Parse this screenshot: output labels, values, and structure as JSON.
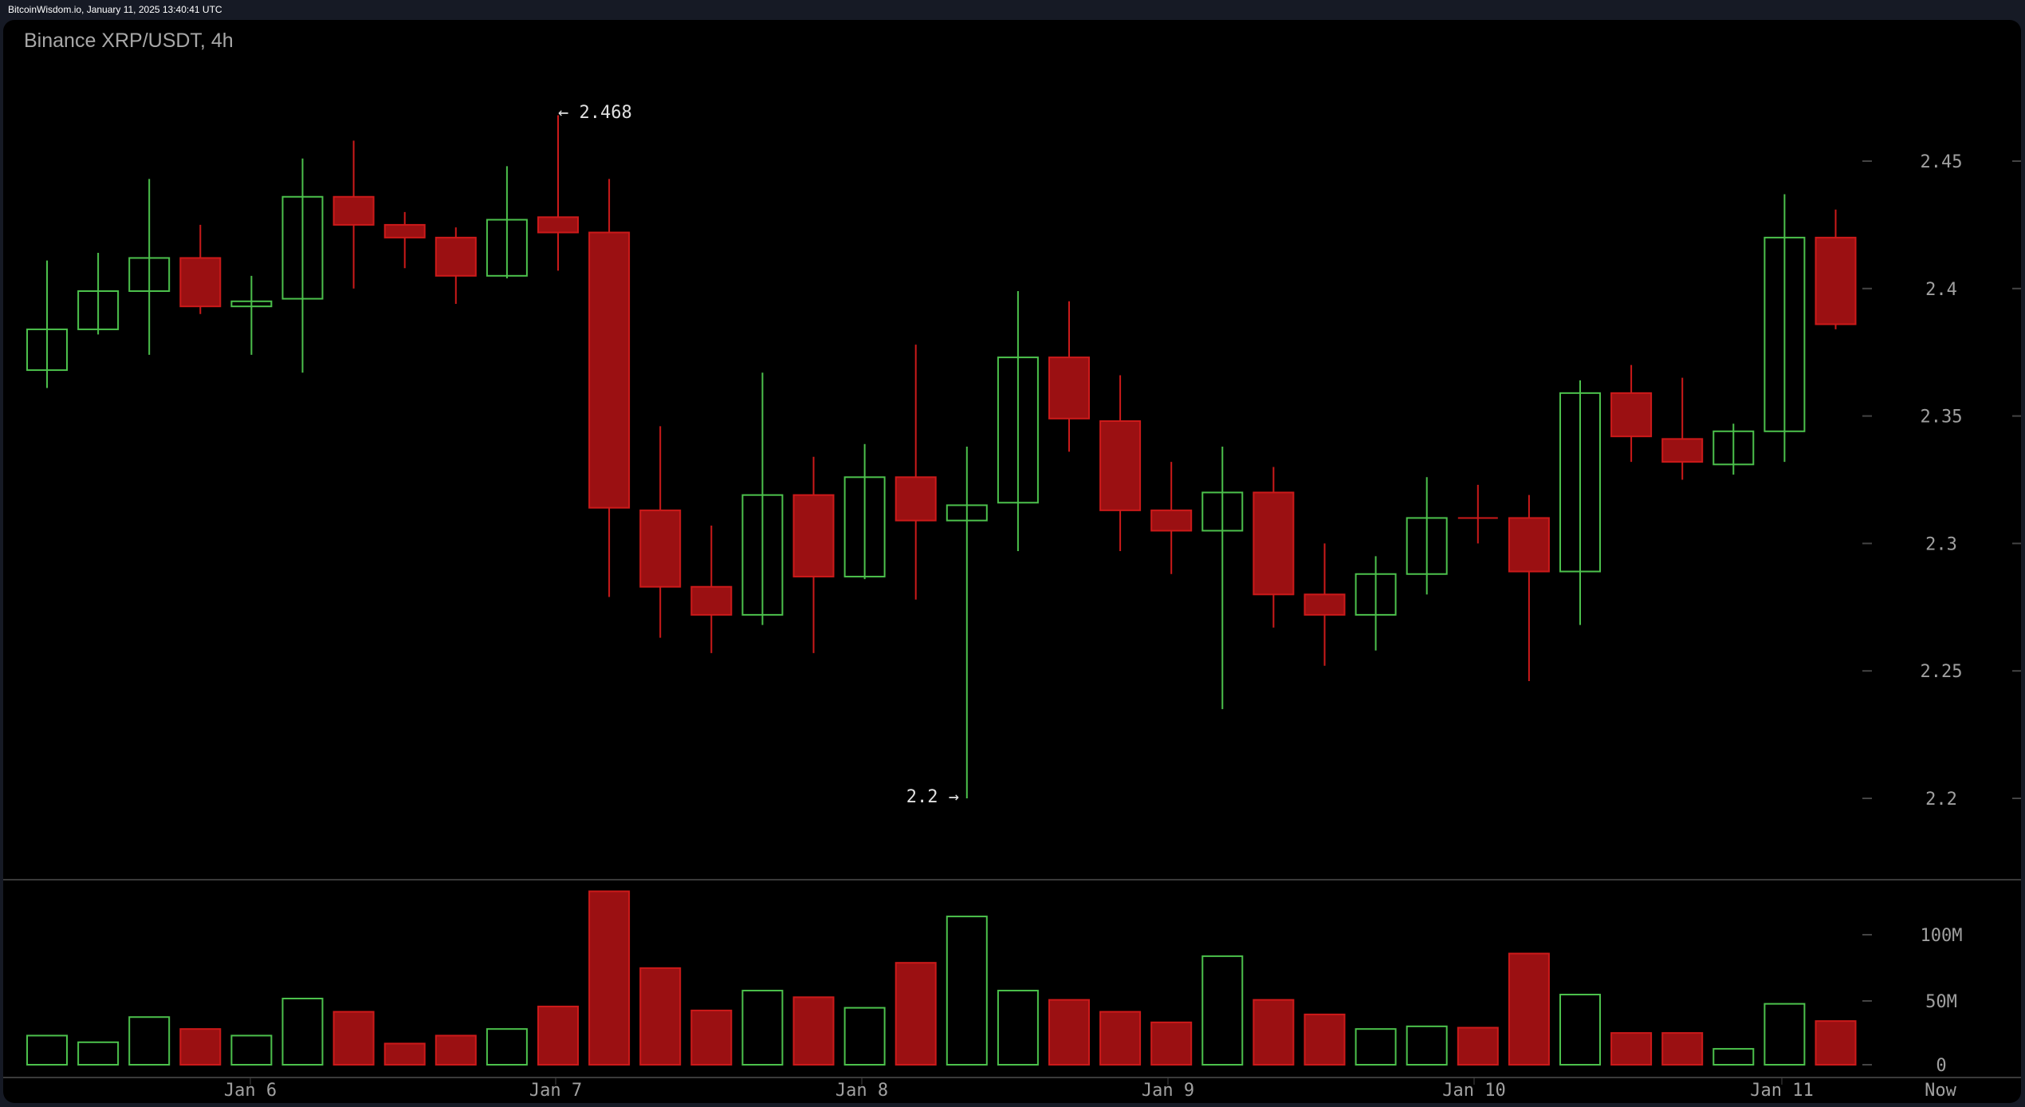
{
  "header": {
    "source_line": "BitcoinWisdom.io, January 11, 2025 13:40:41 UTC",
    "chart_title": "Binance XRP/USDT, 4h"
  },
  "colors": {
    "up": "#4cc14c",
    "down": "#cc1a1a",
    "down_fill": "#9b1012",
    "background": "#000000",
    "frame": "#161a25",
    "axis_text": "#a0a0a0"
  },
  "annotations": {
    "high_label": "← 2.468",
    "low_label": "2.2 →"
  },
  "chart_data": {
    "type": "candlestick",
    "title": "Binance XRP/USDT, 4h",
    "xlabel": "",
    "ylabel": "",
    "ylim": [
      2.165,
      2.48
    ],
    "price_ticks": [
      "2.45",
      "2.4",
      "2.35",
      "2.3",
      "2.25",
      "2.2"
    ],
    "volume_ticks": [
      "100M",
      "50M",
      "0"
    ],
    "x_tick_labels": [
      "Jan 6",
      "Jan 7",
      "Jan 8",
      "Jan 9",
      "Jan 10",
      "Jan 11",
      "Now"
    ],
    "grid": false,
    "high_marker": 2.468,
    "low_marker": 2.2,
    "candles": [
      {
        "o": 2.368,
        "h": 2.411,
        "l": 2.361,
        "c": 2.384,
        "v": 22
      },
      {
        "o": 2.384,
        "h": 2.414,
        "l": 2.382,
        "c": 2.399,
        "v": 17
      },
      {
        "o": 2.399,
        "h": 2.443,
        "l": 2.374,
        "c": 2.412,
        "v": 36
      },
      {
        "o": 2.412,
        "h": 2.425,
        "l": 2.39,
        "c": 2.393,
        "v": 27
      },
      {
        "o": 2.393,
        "h": 2.405,
        "l": 2.374,
        "c": 2.395,
        "v": 22
      },
      {
        "o": 2.396,
        "h": 2.451,
        "l": 2.367,
        "c": 2.436,
        "v": 50
      },
      {
        "o": 2.436,
        "h": 2.458,
        "l": 2.4,
        "c": 2.425,
        "v": 40
      },
      {
        "o": 2.425,
        "h": 2.43,
        "l": 2.408,
        "c": 2.42,
        "v": 16
      },
      {
        "o": 2.42,
        "h": 2.424,
        "l": 2.394,
        "c": 2.405,
        "v": 22
      },
      {
        "o": 2.405,
        "h": 2.448,
        "l": 2.404,
        "c": 2.427,
        "v": 27
      },
      {
        "o": 2.428,
        "h": 2.468,
        "l": 2.407,
        "c": 2.422,
        "v": 44
      },
      {
        "o": 2.422,
        "h": 2.443,
        "l": 2.279,
        "c": 2.314,
        "v": 131
      },
      {
        "o": 2.313,
        "h": 2.346,
        "l": 2.263,
        "c": 2.283,
        "v": 73
      },
      {
        "o": 2.283,
        "h": 2.307,
        "l": 2.257,
        "c": 2.272,
        "v": 41
      },
      {
        "o": 2.272,
        "h": 2.367,
        "l": 2.268,
        "c": 2.319,
        "v": 56
      },
      {
        "o": 2.319,
        "h": 2.334,
        "l": 2.257,
        "c": 2.287,
        "v": 51
      },
      {
        "o": 2.287,
        "h": 2.339,
        "l": 2.286,
        "c": 2.326,
        "v": 43
      },
      {
        "o": 2.326,
        "h": 2.378,
        "l": 2.278,
        "c": 2.309,
        "v": 77
      },
      {
        "o": 2.309,
        "h": 2.338,
        "l": 2.2,
        "c": 2.315,
        "v": 112
      },
      {
        "o": 2.316,
        "h": 2.399,
        "l": 2.297,
        "c": 2.373,
        "v": 56
      },
      {
        "o": 2.373,
        "h": 2.395,
        "l": 2.336,
        "c": 2.349,
        "v": 49
      },
      {
        "o": 2.348,
        "h": 2.366,
        "l": 2.297,
        "c": 2.313,
        "v": 40
      },
      {
        "o": 2.313,
        "h": 2.332,
        "l": 2.288,
        "c": 2.305,
        "v": 32
      },
      {
        "o": 2.305,
        "h": 2.338,
        "l": 2.235,
        "c": 2.32,
        "v": 82
      },
      {
        "o": 2.32,
        "h": 2.33,
        "l": 2.267,
        "c": 2.28,
        "v": 49
      },
      {
        "o": 2.28,
        "h": 2.3,
        "l": 2.252,
        "c": 2.272,
        "v": 38
      },
      {
        "o": 2.272,
        "h": 2.295,
        "l": 2.258,
        "c": 2.288,
        "v": 27
      },
      {
        "o": 2.288,
        "h": 2.326,
        "l": 2.28,
        "c": 2.31,
        "v": 29
      },
      {
        "o": 2.31,
        "h": 2.323,
        "l": 2.3,
        "c": 2.3098,
        "v": 28
      },
      {
        "o": 2.31,
        "h": 2.319,
        "l": 2.246,
        "c": 2.289,
        "v": 84
      },
      {
        "o": 2.289,
        "h": 2.364,
        "l": 2.268,
        "c": 2.359,
        "v": 53
      },
      {
        "o": 2.359,
        "h": 2.37,
        "l": 2.332,
        "c": 2.342,
        "v": 24
      },
      {
        "o": 2.341,
        "h": 2.365,
        "l": 2.325,
        "c": 2.332,
        "v": 24
      },
      {
        "o": 2.331,
        "h": 2.347,
        "l": 2.327,
        "c": 2.344,
        "v": 12
      },
      {
        "o": 2.344,
        "h": 2.437,
        "l": 2.332,
        "c": 2.42,
        "v": 46
      },
      {
        "o": 2.42,
        "h": 2.431,
        "l": 2.384,
        "c": 2.386,
        "v": 33
      }
    ],
    "volume_unit": "M"
  }
}
